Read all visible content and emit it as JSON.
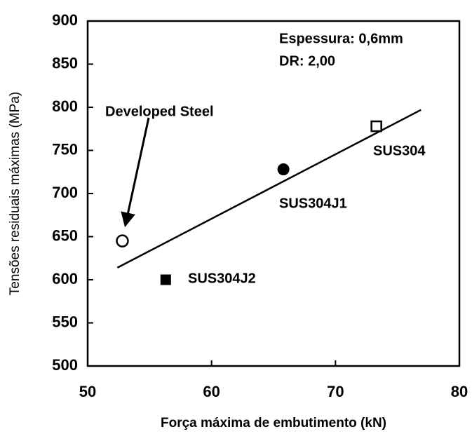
{
  "chart_data": {
    "type": "scatter",
    "xlabel": "Força máxima de embutimento (kN)",
    "ylabel": "Tensões residuais máximas (MPa)",
    "xlim": [
      50,
      80
    ],
    "xticks": [
      50,
      60,
      70,
      80
    ],
    "ylim": [
      500,
      900
    ],
    "yticks": [
      500,
      550,
      600,
      650,
      700,
      750,
      800,
      850,
      900
    ],
    "annotations": [
      "Espessura: 0,6mm",
      "DR: 2,00"
    ],
    "series": [
      {
        "name": "Developed Steel",
        "marker": "circle-open",
        "color": "#000000",
        "x": [
          52.8
        ],
        "values": [
          645
        ]
      },
      {
        "name": "SUS304J2",
        "marker": "square-filled",
        "color": "#000000",
        "x": [
          56.3
        ],
        "values": [
          600
        ]
      },
      {
        "name": "SUS304J1",
        "marker": "circle-filled",
        "color": "#000000",
        "x": [
          65.8
        ],
        "values": [
          728
        ]
      },
      {
        "name": "SUS304",
        "marker": "square-open",
        "color": "#000000",
        "x": [
          73.3
        ],
        "values": [
          778
        ]
      }
    ],
    "fit_line": {
      "color": "#000000",
      "x": [
        52.4,
        76.9
      ],
      "values": [
        614,
        797
      ]
    }
  }
}
